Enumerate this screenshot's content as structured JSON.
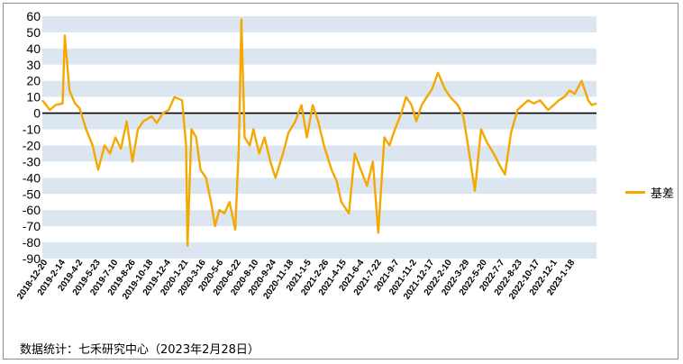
{
  "chart_data": {
    "type": "line",
    "ylim": [
      -90,
      60
    ],
    "yticks": [
      60,
      50,
      40,
      30,
      20,
      10,
      0,
      -10,
      -20,
      -30,
      -40,
      -50,
      -60,
      -70,
      -80,
      -90
    ],
    "x_tick_labels": [
      "2018-12-20",
      "2019-2-14",
      "2019-4-2",
      "2019-5-23",
      "2019-7-10",
      "2019-8-26",
      "2019-10-18",
      "2019-12-4",
      "2020-1-21",
      "2020-3-16",
      "2020-5-6",
      "2020-6-22",
      "2020-8-10",
      "2020-9-24",
      "2020-11-18",
      "2021-1-5",
      "2021-2-26",
      "2021-4-15",
      "2021-6-4",
      "2021-7-22",
      "2021-9-7",
      "2021-11-2",
      "2021-12-17",
      "2022-2-10",
      "2022-3-29",
      "2022-5-20",
      "2022-7-7",
      "2022-8-23",
      "2022-10-17",
      "2022-12-1",
      "2023-1-18"
    ],
    "grid": "horizontal alternating bands",
    "legend": "right",
    "series": [
      {
        "name": "基差",
        "color": "#F5A800",
        "x": [
          "2018-12-20",
          "2019-1-10",
          "2019-1-25",
          "2019-2-14",
          "2019-2-20",
          "2019-3-5",
          "2019-3-20",
          "2019-4-2",
          "2019-4-20",
          "2019-5-8",
          "2019-5-23",
          "2019-6-10",
          "2019-6-25",
          "2019-7-10",
          "2019-7-25",
          "2019-8-10",
          "2019-8-26",
          "2019-9-10",
          "2019-9-25",
          "2019-10-18",
          "2019-11-1",
          "2019-11-18",
          "2019-12-4",
          "2019-12-20",
          "2020-1-10",
          "2020-1-21",
          "2020-1-25",
          "2020-2-5",
          "2020-2-18",
          "2020-3-1",
          "2020-3-16",
          "2020-3-30",
          "2020-4-10",
          "2020-4-22",
          "2020-5-6",
          "2020-5-20",
          "2020-6-5",
          "2020-6-15",
          "2020-6-22",
          "2020-7-1",
          "2020-7-15",
          "2020-7-25",
          "2020-8-10",
          "2020-8-25",
          "2020-9-10",
          "2020-9-24",
          "2020-10-15",
          "2020-10-30",
          "2020-11-18",
          "2020-12-5",
          "2020-12-20",
          "2021-1-5",
          "2021-1-20",
          "2021-2-5",
          "2021-2-26",
          "2021-3-12",
          "2021-3-25",
          "2021-4-15",
          "2021-5-1",
          "2021-5-18",
          "2021-6-4",
          "2021-6-20",
          "2021-7-5",
          "2021-7-22",
          "2021-8-5",
          "2021-8-20",
          "2021-9-7",
          "2021-9-20",
          "2021-10-5",
          "2021-10-18",
          "2021-11-2",
          "2021-11-16",
          "2021-12-1",
          "2021-12-17",
          "2022-1-5",
          "2022-1-20",
          "2022-2-10",
          "2022-2-25",
          "2022-3-10",
          "2022-3-29",
          "2022-4-15",
          "2022-5-1",
          "2022-5-20",
          "2022-6-5",
          "2022-6-20",
          "2022-7-7",
          "2022-7-25",
          "2022-8-8",
          "2022-8-23",
          "2022-9-8",
          "2022-9-25",
          "2022-10-17",
          "2022-11-2",
          "2022-11-16",
          "2022-12-1",
          "2022-12-15",
          "2022-12-30",
          "2023-1-18",
          "2023-2-5",
          "2023-2-15",
          "2023-2-28"
        ],
        "values": [
          8,
          2,
          5,
          6,
          48,
          14,
          6,
          3,
          -10,
          -20,
          -35,
          -20,
          -25,
          -15,
          -22,
          -5,
          -30,
          -10,
          -5,
          -2,
          -6,
          0,
          2,
          10,
          8,
          -20,
          -82,
          -10,
          -15,
          -35,
          -40,
          -55,
          -70,
          -60,
          -62,
          -55,
          -72,
          -20,
          58,
          -15,
          -20,
          -10,
          -25,
          -15,
          -30,
          -40,
          -25,
          -12,
          -5,
          5,
          -15,
          5,
          -5,
          -20,
          -35,
          -42,
          -55,
          -62,
          -25,
          -35,
          -45,
          -30,
          -74,
          -15,
          -20,
          -10,
          0,
          10,
          5,
          -5,
          5,
          10,
          15,
          25,
          15,
          10,
          5,
          -2,
          -20,
          -48,
          -10,
          -18,
          -25,
          -32,
          -38,
          -12,
          2,
          5,
          8,
          6,
          8,
          2,
          5,
          8,
          10,
          14,
          12,
          20,
          8,
          5,
          6
        ]
      }
    ]
  },
  "source_note": "数据统计：七禾研究中心（2023年2月28日）"
}
